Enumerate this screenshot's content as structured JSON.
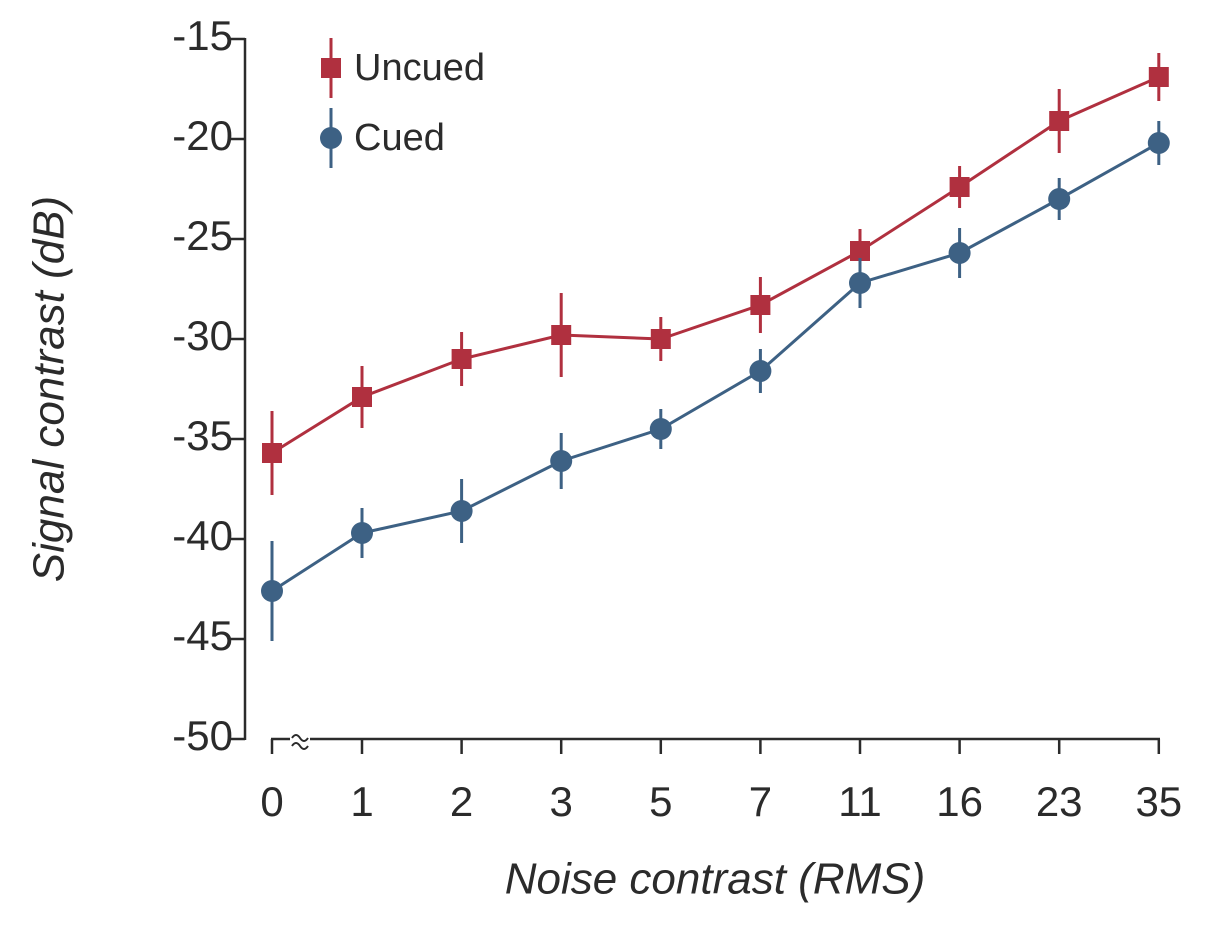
{
  "chart_data": {
    "type": "line",
    "xlabel": "Noise contrast (RMS)",
    "ylabel": "Signal contrast (dB)",
    "categories": [
      "0",
      "1",
      "2",
      "3",
      "5",
      "7",
      "11",
      "16",
      "23",
      "35"
    ],
    "ylim": [
      -50,
      -15
    ],
    "yticks": [
      -50,
      -45,
      -40,
      -35,
      -30,
      -25,
      -20,
      -15
    ],
    "series": [
      {
        "name": "Uncued",
        "color": "#b0303f",
        "marker": "square",
        "values": [
          -35.7,
          -32.9,
          -31.0,
          -29.8,
          -30.0,
          -28.3,
          -25.6,
          -22.4,
          -19.1,
          -16.9
        ],
        "errors": [
          2.1,
          1.55,
          1.35,
          2.1,
          1.1,
          1.4,
          1.1,
          1.05,
          1.6,
          1.2
        ]
      },
      {
        "name": "Cued",
        "color": "#3d6184",
        "marker": "circle",
        "values": [
          -42.6,
          -39.7,
          -38.6,
          -36.1,
          -34.5,
          -31.6,
          -27.2,
          -25.7,
          -23.0,
          -20.2
        ],
        "errors": [
          2.5,
          1.25,
          1.6,
          1.4,
          1.0,
          1.1,
          1.25,
          1.25,
          1.05,
          1.1
        ]
      }
    ]
  }
}
